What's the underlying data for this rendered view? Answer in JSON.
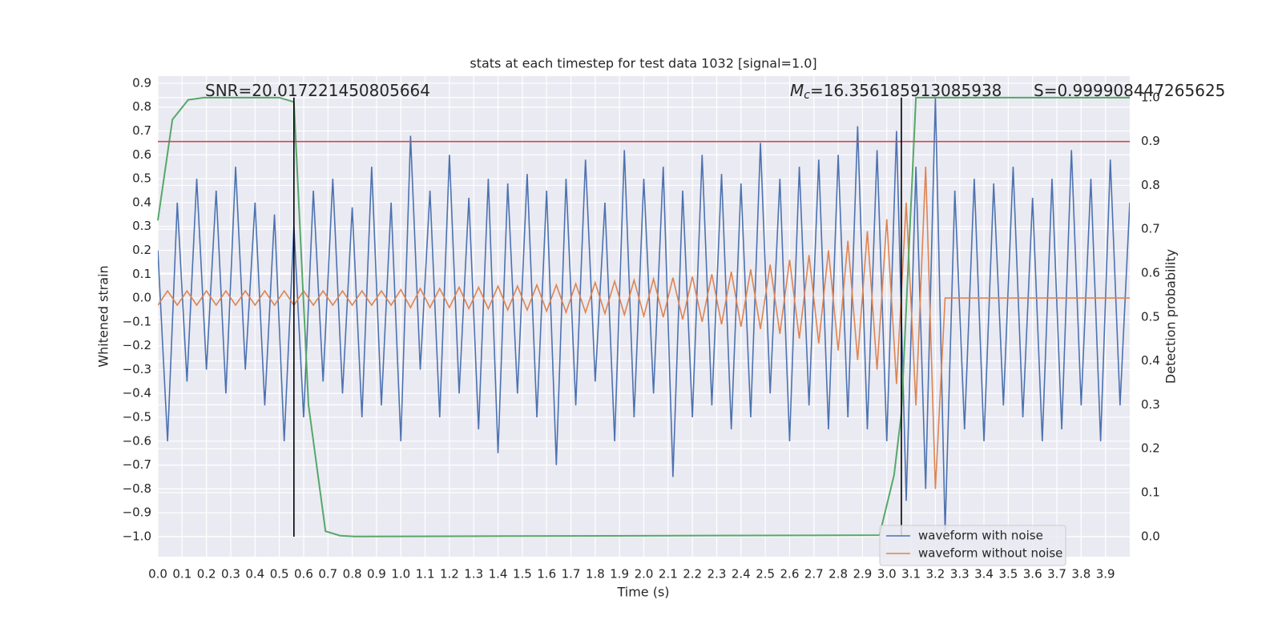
{
  "chart_data": {
    "type": "line",
    "title": "stats at each timestep for test data 1032 [signal=1.0]",
    "xlabel": "Time (s)",
    "ylabel": "Whitened strain",
    "y2label": "Detection probability",
    "annotations": [
      {
        "text": "SNR=20.017221450805664"
      },
      {
        "symbol": "M",
        "subscript": "c",
        "text": "=16.356185913085938"
      },
      {
        "text": "S=0.999908447265625"
      }
    ],
    "xlim": [
      0,
      4.0
    ],
    "ylim": [
      -1.084,
      0.93
    ],
    "y2lim": [
      -0.046,
      1.049
    ],
    "grid": true,
    "legend": "lower right",
    "xticks": [
      {
        "value": 0,
        "label": "0.0"
      },
      {
        "value": 0.1,
        "label": "0.1"
      },
      {
        "value": 0.2,
        "label": "0.2"
      },
      {
        "value": 0.3,
        "label": "0.3"
      },
      {
        "value": 0.4,
        "label": "0.4"
      },
      {
        "value": 0.5,
        "label": "0.5"
      },
      {
        "value": 0.6,
        "label": "0.6"
      },
      {
        "value": 0.7,
        "label": "0.7"
      },
      {
        "value": 0.8,
        "label": "0.8"
      },
      {
        "value": 0.9,
        "label": "0.9"
      },
      {
        "value": 1,
        "label": "1.0"
      },
      {
        "value": 1.1,
        "label": "1.1"
      },
      {
        "value": 1.2,
        "label": "1.2"
      },
      {
        "value": 1.3,
        "label": "1.3"
      },
      {
        "value": 1.4,
        "label": "1.4"
      },
      {
        "value": 1.5,
        "label": "1.5"
      },
      {
        "value": 1.6,
        "label": "1.6"
      },
      {
        "value": 1.7,
        "label": "1.7"
      },
      {
        "value": 1.8,
        "label": "1.8"
      },
      {
        "value": 1.9,
        "label": "1.9"
      },
      {
        "value": 2,
        "label": "2.0"
      },
      {
        "value": 2.1,
        "label": "2.1"
      },
      {
        "value": 2.2,
        "label": "2.2"
      },
      {
        "value": 2.3,
        "label": "2.3"
      },
      {
        "value": 2.4,
        "label": "2.4"
      },
      {
        "value": 2.5,
        "label": "2.5"
      },
      {
        "value": 2.6,
        "label": "2.6"
      },
      {
        "value": 2.7,
        "label": "2.7"
      },
      {
        "value": 2.8,
        "label": "2.8"
      },
      {
        "value": 2.9,
        "label": "2.9"
      },
      {
        "value": 3,
        "label": "3.0"
      },
      {
        "value": 3.1,
        "label": "3.1"
      },
      {
        "value": 3.2,
        "label": "3.2"
      },
      {
        "value": 3.3,
        "label": "3.3"
      },
      {
        "value": 3.4,
        "label": "3.4"
      },
      {
        "value": 3.5,
        "label": "3.5"
      },
      {
        "value": 3.6,
        "label": "3.6"
      },
      {
        "value": 3.7,
        "label": "3.7"
      },
      {
        "value": 3.8,
        "label": "3.8"
      },
      {
        "value": 3.9,
        "label": "3.9"
      }
    ],
    "yticks": [
      {
        "value": -1,
        "label": "−1.0"
      },
      {
        "value": -0.9,
        "label": "−0.9"
      },
      {
        "value": -0.8,
        "label": "−0.8"
      },
      {
        "value": -0.7,
        "label": "−0.7"
      },
      {
        "value": -0.6,
        "label": "−0.6"
      },
      {
        "value": -0.5,
        "label": "−0.5"
      },
      {
        "value": -0.4,
        "label": "−0.4"
      },
      {
        "value": -0.3,
        "label": "−0.3"
      },
      {
        "value": -0.2,
        "label": "−0.2"
      },
      {
        "value": -0.1,
        "label": "−0.1"
      },
      {
        "value": 0,
        "label": "0.0"
      },
      {
        "value": 0.1,
        "label": "0.1"
      },
      {
        "value": 0.2,
        "label": "0.2"
      },
      {
        "value": 0.3,
        "label": "0.3"
      },
      {
        "value": 0.4,
        "label": "0.4"
      },
      {
        "value": 0.5,
        "label": "0.5"
      },
      {
        "value": 0.6,
        "label": "0.6"
      },
      {
        "value": 0.7,
        "label": "0.7"
      },
      {
        "value": 0.8,
        "label": "0.8"
      },
      {
        "value": 0.9,
        "label": "0.9"
      }
    ],
    "y2ticks": [
      {
        "value": 0,
        "label": "0.0"
      },
      {
        "value": 0.1,
        "label": "0.1"
      },
      {
        "value": 0.2,
        "label": "0.2"
      },
      {
        "value": 0.3,
        "label": "0.3"
      },
      {
        "value": 0.4,
        "label": "0.4"
      },
      {
        "value": 0.5,
        "label": "0.5"
      },
      {
        "value": 0.6,
        "label": "0.6"
      },
      {
        "value": 0.7,
        "label": "0.7"
      },
      {
        "value": 0.8,
        "label": "0.8"
      },
      {
        "value": 0.9,
        "label": "0.9"
      },
      {
        "value": 1,
        "label": "1.0"
      }
    ],
    "x": [
      0,
      0.04,
      0.08,
      0.12,
      0.16,
      0.2,
      0.24,
      0.28,
      0.32,
      0.36,
      0.4,
      0.44,
      0.48,
      0.52,
      0.56,
      0.6,
      0.64,
      0.68,
      0.72,
      0.76,
      0.8,
      0.84,
      0.88,
      0.92,
      0.96,
      1.0,
      1.04,
      1.08,
      1.12,
      1.16,
      1.2,
      1.24,
      1.28,
      1.32,
      1.36,
      1.4,
      1.44,
      1.48,
      1.52,
      1.56,
      1.6,
      1.64,
      1.68,
      1.72,
      1.76,
      1.8,
      1.84,
      1.88,
      1.92,
      1.96,
      2.0,
      2.04,
      2.08,
      2.12,
      2.16,
      2.2,
      2.24,
      2.28,
      2.32,
      2.36,
      2.4,
      2.44,
      2.48,
      2.52,
      2.56,
      2.6,
      2.64,
      2.68,
      2.72,
      2.76,
      2.8,
      2.84,
      2.88,
      2.92,
      2.96,
      3.0,
      3.04,
      3.08,
      3.12,
      3.16,
      3.2,
      3.24,
      3.28,
      3.32,
      3.36,
      3.4,
      3.44,
      3.48,
      3.52,
      3.56,
      3.6,
      3.64,
      3.68,
      3.72,
      3.76,
      3.8,
      3.84,
      3.88,
      3.92,
      3.96,
      4.0
    ],
    "series": [
      {
        "name": "waveform with noise",
        "color": "#4c72b0",
        "values": [
          0.2,
          -0.6,
          0.4,
          -0.35,
          0.5,
          -0.3,
          0.45,
          -0.4,
          0.55,
          -0.3,
          0.4,
          -0.45,
          0.35,
          -0.6,
          0.3,
          -0.5,
          0.45,
          -0.35,
          0.5,
          -0.4,
          0.38,
          -0.5,
          0.55,
          -0.45,
          0.4,
          -0.6,
          0.68,
          -0.3,
          0.45,
          -0.5,
          0.6,
          -0.4,
          0.42,
          -0.55,
          0.5,
          -0.65,
          0.48,
          -0.4,
          0.52,
          -0.5,
          0.45,
          -0.7,
          0.5,
          -0.45,
          0.58,
          -0.35,
          0.4,
          -0.6,
          0.62,
          -0.5,
          0.5,
          -0.4,
          0.55,
          -0.75,
          0.45,
          -0.5,
          0.6,
          -0.45,
          0.52,
          -0.55,
          0.48,
          -0.5,
          0.65,
          -0.4,
          0.5,
          -0.6,
          0.55,
          -0.45,
          0.58,
          -0.55,
          0.6,
          -0.5,
          0.72,
          -0.55,
          0.62,
          -0.6,
          0.7,
          -0.85,
          0.55,
          -0.8,
          0.84,
          -0.98,
          0.45,
          -0.55,
          0.5,
          -0.6,
          0.48,
          -0.45,
          0.55,
          -0.5,
          0.42,
          -0.6,
          0.5,
          -0.55,
          0.62,
          -0.45,
          0.5,
          -0.6,
          0.58,
          -0.45,
          0.4
        ]
      },
      {
        "name": "waveform without noise",
        "color": "#dd8452",
        "values": [
          -0.03,
          0.03,
          -0.03,
          0.03,
          -0.03,
          0.03,
          -0.03,
          0.03,
          -0.03,
          0.03,
          -0.03,
          0.03,
          -0.03,
          0.03,
          -0.03,
          0.03,
          -0.03,
          0.03,
          -0.03,
          0.03,
          -0.03,
          0.03,
          -0.03,
          0.03,
          -0.03,
          0.035,
          -0.04,
          0.04,
          -0.04,
          0.04,
          -0.04,
          0.045,
          -0.045,
          0.045,
          -0.045,
          0.05,
          -0.05,
          0.05,
          -0.05,
          0.055,
          -0.055,
          0.055,
          -0.06,
          0.06,
          -0.06,
          0.065,
          -0.065,
          0.07,
          -0.07,
          0.075,
          -0.075,
          0.08,
          -0.08,
          0.085,
          -0.09,
          0.09,
          -0.1,
          0.1,
          -0.11,
          0.11,
          -0.12,
          0.12,
          -0.13,
          0.14,
          -0.15,
          0.16,
          -0.17,
          0.18,
          -0.19,
          0.2,
          -0.22,
          0.24,
          -0.26,
          0.28,
          -0.3,
          0.33,
          -0.36,
          0.4,
          -0.45,
          0.55,
          -0.8,
          0,
          0,
          0,
          0,
          0,
          0,
          0,
          0,
          0,
          0,
          0,
          0,
          0,
          0,
          0,
          0,
          0,
          0,
          0,
          0
        ]
      }
    ],
    "probability": {
      "color": "#55a868",
      "axis": "y2",
      "x": [
        0,
        0.06,
        0.125,
        0.19,
        0.5,
        0.56,
        0.62,
        0.69,
        0.75,
        0.81,
        2.97,
        3.03,
        3.06,
        3.12,
        4.0
      ],
      "values": [
        0.72,
        0.95,
        0.995,
        1.0,
        1.0,
        0.99,
        0.3,
        0.012,
        0.002,
        0.0,
        0.003,
        0.14,
        0.28,
        1.0,
        1.0
      ]
    },
    "threshold": {
      "value": 0.9,
      "color": "#c44e52",
      "axis": "y2"
    },
    "vlines": {
      "x": [
        0.56,
        3.06
      ],
      "ylim": [
        -1.0,
        0.84
      ],
      "color": "#000000"
    }
  }
}
